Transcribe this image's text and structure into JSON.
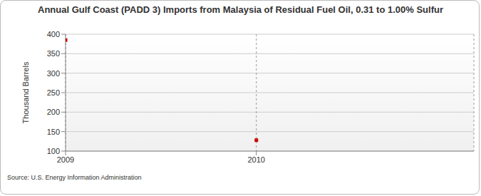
{
  "chart_data": {
    "type": "scatter",
    "title": "Annual Gulf Coast (PADD 3) Imports from Malaysia of Residual Fuel Oil, 0.31 to 1.00% Sulfur",
    "y_label": "Thousand Barrels",
    "source": "Source: U.S. Energy Information Administration",
    "x": [
      2009,
      2010
    ],
    "values": [
      385,
      128
    ],
    "color": "#cc0000",
    "marker": "square",
    "xlim": [
      2009,
      2011.14
    ],
    "xticks": [
      2009,
      2010
    ],
    "ylim": [
      100,
      400
    ],
    "yticks": [
      100,
      150,
      200,
      250,
      300,
      350,
      400
    ],
    "grid": true
  }
}
